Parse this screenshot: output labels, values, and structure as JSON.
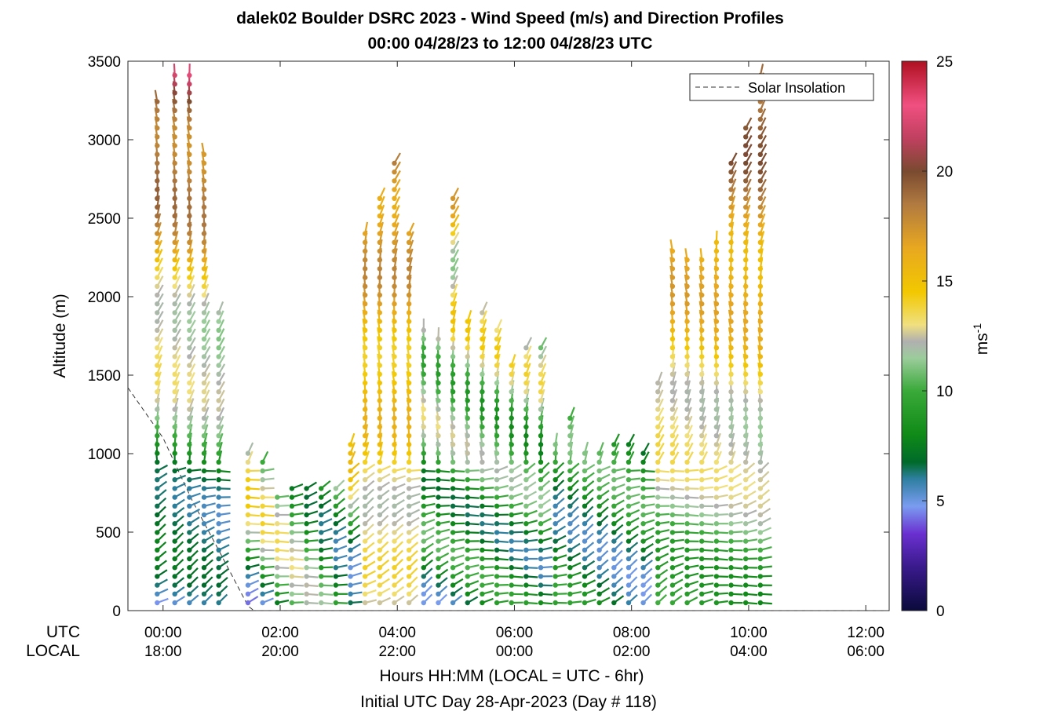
{
  "chart_data": {
    "type": "scatter",
    "title": "dalek02 Boulder DSRC 2023 - Wind Speed (m/s) and Direction Profiles",
    "subtitle": "00:00 04/28/23 to 12:00 04/28/23  UTC",
    "ylabel": "Altitude (m)",
    "xlabel": "Hours HH:MM  (LOCAL = UTC - 6hr)",
    "xlabel2": "Initial UTC Day 28-Apr-2023 (Day # 118)",
    "row_label_utc": "UTC",
    "row_label_local": "LOCAL",
    "xlim_hours": [
      -0.6,
      12.4
    ],
    "ylim": [
      0,
      3500
    ],
    "yticks": [
      "0",
      "500",
      "1000",
      "1500",
      "2000",
      "2500",
      "3000",
      "3500"
    ],
    "xticks_utc": [
      "00:00",
      "02:00",
      "04:00",
      "06:00",
      "08:00",
      "10:00",
      "12:00"
    ],
    "xticks_local": [
      "18:00",
      "20:00",
      "22:00",
      "00:00",
      "02:00",
      "04:00",
      "06:00"
    ],
    "legend": {
      "label": "Solar Insolation",
      "placement": "top-right"
    },
    "colorbar": {
      "label": "ms",
      "label_exp": "-1",
      "range": [
        0,
        25
      ],
      "ticks": [
        "0",
        "5",
        "10",
        "15",
        "20",
        "25"
      ]
    },
    "profiles": [
      {
        "t": -0.1,
        "top": 3250
      },
      {
        "t": 0.2,
        "top": 3450
      },
      {
        "t": 0.45,
        "top": 3450
      },
      {
        "t": 0.7,
        "top": 2950
      },
      {
        "t": 0.95,
        "top": 1950
      },
      {
        "t": 1.45,
        "top": 1050
      },
      {
        "t": 1.7,
        "top": 1000
      },
      {
        "t": 1.95,
        "top": 750
      },
      {
        "t": 2.2,
        "top": 800
      },
      {
        "t": 2.45,
        "top": 800
      },
      {
        "t": 2.7,
        "top": 800
      },
      {
        "t": 2.95,
        "top": 800
      },
      {
        "t": 3.2,
        "top": 1100
      },
      {
        "t": 3.45,
        "top": 2450
      },
      {
        "t": 3.7,
        "top": 2650
      },
      {
        "t": 3.95,
        "top": 2850
      },
      {
        "t": 4.2,
        "top": 2450
      },
      {
        "t": 4.45,
        "top": 1800
      },
      {
        "t": 4.7,
        "top": 1750
      },
      {
        "t": 4.95,
        "top": 2650
      },
      {
        "t": 5.2,
        "top": 1850
      },
      {
        "t": 5.45,
        "top": 1950
      },
      {
        "t": 5.7,
        "top": 1800
      },
      {
        "t": 5.95,
        "top": 1600
      },
      {
        "t": 6.2,
        "top": 1700
      },
      {
        "t": 6.45,
        "top": 1700
      },
      {
        "t": 6.7,
        "top": 1100
      },
      {
        "t": 6.95,
        "top": 1250
      },
      {
        "t": 7.2,
        "top": 1050
      },
      {
        "t": 7.45,
        "top": 1050
      },
      {
        "t": 7.7,
        "top": 1100
      },
      {
        "t": 7.95,
        "top": 1100
      },
      {
        "t": 8.2,
        "top": 1050
      },
      {
        "t": 8.45,
        "top": 1450
      },
      {
        "t": 8.7,
        "top": 2300
      },
      {
        "t": 8.95,
        "top": 2250
      },
      {
        "t": 9.2,
        "top": 2250
      },
      {
        "t": 9.45,
        "top": 2350
      },
      {
        "t": 9.7,
        "top": 2900
      },
      {
        "t": 9.95,
        "top": 3100
      },
      {
        "t": 10.2,
        "top": 3450
      }
    ]
  }
}
